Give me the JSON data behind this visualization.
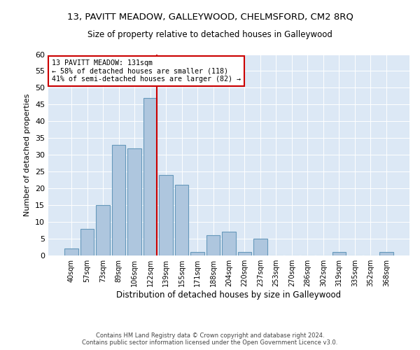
{
  "title1": "13, PAVITT MEADOW, GALLEYWOOD, CHELMSFORD, CM2 8RQ",
  "title2": "Size of property relative to detached houses in Galleywood",
  "xlabel": "Distribution of detached houses by size in Galleywood",
  "ylabel": "Number of detached properties",
  "bin_labels": [
    "40sqm",
    "57sqm",
    "73sqm",
    "89sqm",
    "106sqm",
    "122sqm",
    "139sqm",
    "155sqm",
    "171sqm",
    "188sqm",
    "204sqm",
    "220sqm",
    "237sqm",
    "253sqm",
    "270sqm",
    "286sqm",
    "302sqm",
    "319sqm",
    "335sqm",
    "352sqm",
    "368sqm"
  ],
  "bin_values": [
    2,
    8,
    15,
    33,
    32,
    47,
    24,
    21,
    1,
    6,
    7,
    1,
    5,
    0,
    0,
    0,
    0,
    1,
    0,
    0,
    1
  ],
  "bar_color": "#aec6de",
  "bar_edge_color": "#6699bb",
  "vline_color": "#cc0000",
  "annotation_line1": "13 PAVITT MEADOW: 131sqm",
  "annotation_line2": "← 58% of detached houses are smaller (118)",
  "annotation_line3": "41% of semi-detached houses are larger (82) →",
  "annotation_box_color": "#ffffff",
  "annotation_box_edge_color": "#cc0000",
  "ylim": [
    0,
    60
  ],
  "yticks": [
    0,
    5,
    10,
    15,
    20,
    25,
    30,
    35,
    40,
    45,
    50,
    55,
    60
  ],
  "bg_color": "#dce8f5",
  "footer1": "Contains HM Land Registry data © Crown copyright and database right 2024.",
  "footer2": "Contains public sector information licensed under the Open Government Licence v3.0."
}
